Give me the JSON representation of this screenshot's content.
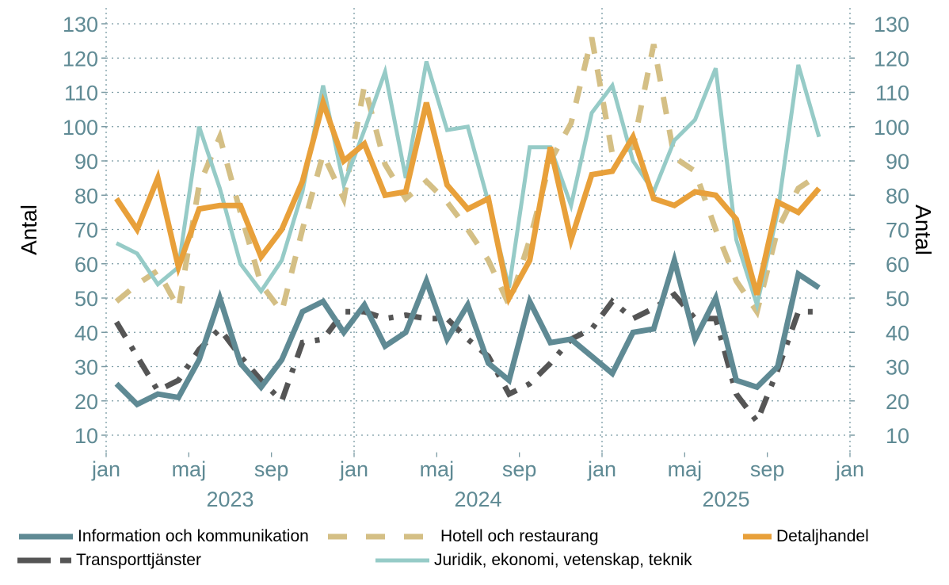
{
  "chart_data": {
    "type": "line",
    "title": "",
    "ylabel_left": "Antal",
    "ylabel_right": "Antal",
    "ylim": [
      5,
      130
    ],
    "yticks": [
      10,
      20,
      30,
      40,
      50,
      60,
      70,
      80,
      90,
      100,
      110,
      120,
      130
    ],
    "grid": true,
    "x_months_start": "2023-01",
    "x_range_months": 36,
    "xtick_labels": [
      "jan",
      "maj",
      "sep",
      "jan",
      "maj",
      "sep",
      "jan",
      "maj",
      "sep",
      "jan"
    ],
    "xtick_month_index": [
      0,
      4,
      8,
      12,
      16,
      20,
      24,
      28,
      32,
      36
    ],
    "year_labels": [
      {
        "label": "2023",
        "center_month": 6
      },
      {
        "label": "2024",
        "center_month": 18
      },
      {
        "label": "2025",
        "center_month": 30
      }
    ],
    "x": [
      "2023-01",
      "2023-02",
      "2023-03",
      "2023-04",
      "2023-05",
      "2023-06",
      "2023-07",
      "2023-08",
      "2023-09",
      "2023-10",
      "2023-11",
      "2023-12",
      "2024-01",
      "2024-02",
      "2024-03",
      "2024-04",
      "2024-05",
      "2024-06",
      "2024-07",
      "2024-08",
      "2024-09",
      "2024-10",
      "2024-11",
      "2024-12",
      "2025-01",
      "2025-02",
      "2025-03",
      "2025-04",
      "2025-05",
      "2025-06",
      "2025-07",
      "2025-08",
      "2025-09",
      "2025-10",
      "2025-11"
    ],
    "series": [
      {
        "name": "Hotell och restaurang",
        "color": "#d4bf85",
        "style": "dashed",
        "values": [
          49,
          54,
          58,
          47,
          83,
          97,
          75,
          54,
          46,
          70,
          92,
          79,
          112,
          89,
          79,
          84,
          78,
          70,
          61,
          48,
          67,
          90,
          101,
          126,
          92,
          94,
          124,
          91,
          87,
          70,
          55,
          46,
          70,
          82,
          86
        ]
      },
      {
        "name": "Juridik, ekonomi, vetenskap, teknik",
        "color": "#96cbc7",
        "style": "solid-thin",
        "values": [
          66,
          63,
          54,
          59,
          100,
          82,
          60,
          52,
          61,
          81,
          112,
          83,
          99,
          116,
          85,
          119,
          99,
          100,
          78,
          53,
          94,
          94,
          77,
          104,
          112,
          90,
          81,
          96,
          102,
          117,
          67,
          48,
          75,
          118,
          97
        ]
      },
      {
        "name": "Detaljhandel",
        "color": "#e8a03a",
        "style": "solid",
        "values": [
          79,
          70,
          85,
          59,
          76,
          77,
          77,
          62,
          70,
          84,
          107,
          90,
          95,
          80,
          81,
          107,
          83,
          76,
          79,
          50,
          61,
          94,
          67,
          86,
          87,
          97,
          79,
          77,
          81,
          80,
          73,
          51,
          78,
          75,
          82
        ]
      },
      {
        "name": "Transporttjänster",
        "color": "#555555",
        "style": "dash-dot",
        "values": [
          43,
          33,
          23,
          26,
          35,
          41,
          33,
          26,
          20,
          37,
          38,
          46,
          46,
          44,
          45,
          44,
          44,
          38,
          33,
          22,
          25,
          31,
          38,
          41,
          49,
          44,
          47,
          51,
          44,
          44,
          22,
          14,
          29,
          46,
          46
        ]
      },
      {
        "name": "Information och kommunikation",
        "color": "#5f8a94",
        "style": "solid",
        "values": [
          25,
          19,
          22,
          21,
          32,
          50,
          31,
          24,
          32,
          46,
          49,
          40,
          48,
          36,
          40,
          55,
          38,
          48,
          31,
          26,
          49,
          37,
          38,
          33,
          28,
          40,
          41,
          61,
          38,
          50,
          26,
          24,
          30,
          57,
          53
        ]
      }
    ],
    "legend": {
      "placement": "bottom",
      "items": [
        {
          "label": "Information och kommunikation",
          "color": "#5f8a94",
          "style": "solid"
        },
        {
          "label": "Hotell och restaurang",
          "color": "#d4bf85",
          "style": "dashed"
        },
        {
          "label": "Detaljhandel",
          "color": "#e8a03a",
          "style": "solid"
        },
        {
          "label": "Transporttjänster",
          "color": "#555555",
          "style": "dash-dot"
        },
        {
          "label": "Juridik, ekonomi, vetenskap, teknik",
          "color": "#96cbc7",
          "style": "solid-thin"
        }
      ]
    }
  },
  "colors": {
    "tick_text": "#5f8a94",
    "grid": "#7a9aa3"
  }
}
